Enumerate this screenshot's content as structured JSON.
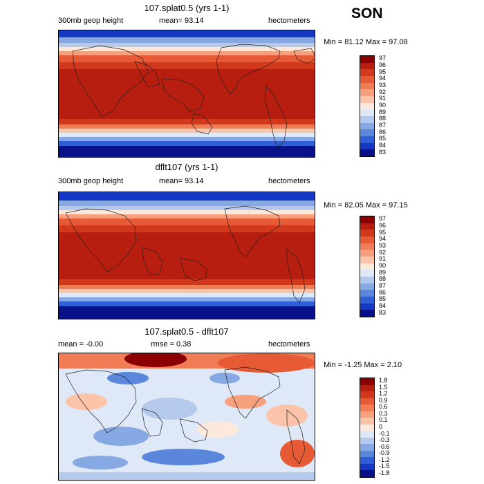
{
  "season": "SON",
  "panels": [
    {
      "title": "107.splat0.5 (yrs 1-1)",
      "left_label": "300mb geop height",
      "center_label": "mean=  93.14",
      "units": "hectometers",
      "minmax": "Min =  81.12 Max =  97.08",
      "colorbar": [
        "97",
        "96",
        "95",
        "94",
        "93",
        "92",
        "91",
        "90",
        "89",
        "88",
        "87",
        "86",
        "85",
        "84",
        "83"
      ]
    },
    {
      "title": "dflt107 (yrs 1-1)",
      "left_label": "300mb geop height",
      "center_label": "mean=  93.14",
      "units": "hectometers",
      "minmax": "Min =  82.05 Max =  97.15",
      "colorbar": [
        "97",
        "96",
        "95",
        "94",
        "93",
        "92",
        "91",
        "90",
        "89",
        "88",
        "87",
        "86",
        "85",
        "84",
        "83"
      ]
    },
    {
      "title": "107.splat0.5 - dflt107",
      "left_label": "mean =   -0.00",
      "center_label": "rmse =    0.38",
      "units": "hectometers",
      "minmax": "Min =  -1.25 Max =   2.10",
      "colorbar": [
        "1.8",
        "1.5",
        "1.2",
        "0.9",
        "0.6",
        "0.3",
        "0.1",
        "0",
        "-0.1",
        "-0.3",
        "-0.6",
        "-0.9",
        "-1.2",
        "-1.5",
        "-1.8"
      ]
    }
  ],
  "colors": {
    "abs_scale": [
      "#8b0000",
      "#b81e0f",
      "#d2381c",
      "#e65a35",
      "#f07d55",
      "#f6a07e",
      "#fbc4a8",
      "#fde8dc",
      "#dfe8f6",
      "#b5c9ec",
      "#86a9e3",
      "#5a86dc",
      "#2f5ed6",
      "#1538c4",
      "#08108a"
    ],
    "diff_scale": [
      "#8b0000",
      "#b81e0f",
      "#d2381c",
      "#e65a35",
      "#f07d55",
      "#f6a07e",
      "#fbc4a8",
      "#fde8dc",
      "#dfe8f6",
      "#b5c9ec",
      "#86a9e3",
      "#5a86dc",
      "#2f5ed6",
      "#1538c4",
      "#08108a"
    ]
  }
}
